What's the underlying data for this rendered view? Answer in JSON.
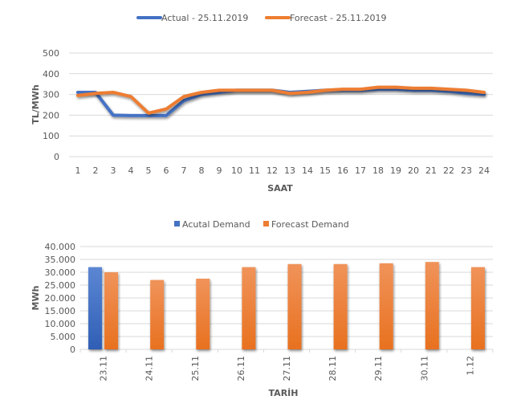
{
  "colors": {
    "actual": "#4472c4",
    "forecast": "#ed7d31",
    "grid": "#d9d9d9",
    "text": "#595959"
  },
  "chart_data": [
    {
      "type": "line",
      "title": "",
      "legend": [
        "Actual - 25.11.2019",
        "Forecast - 25.11.2019"
      ],
      "legend_position": "top",
      "xlabel": "SAAT",
      "ylabel": "TL/MWh",
      "ylim": [
        0,
        500
      ],
      "yticks": [
        0,
        100,
        200,
        300,
        400,
        500
      ],
      "grid": true,
      "x": [
        1,
        2,
        3,
        4,
        5,
        6,
        7,
        8,
        9,
        10,
        11,
        12,
        13,
        14,
        15,
        16,
        17,
        18,
        19,
        20,
        21,
        22,
        23,
        24
      ],
      "series": [
        {
          "name": "Actual - 25.11.2019",
          "values": [
            310,
            310,
            200,
            198,
            198,
            198,
            270,
            300,
            310,
            320,
            320,
            320,
            310,
            315,
            320,
            320,
            320,
            325,
            325,
            320,
            320,
            315,
            305,
            300
          ]
        },
        {
          "name": "Forecast - 25.11.2019",
          "values": [
            295,
            305,
            310,
            290,
            210,
            230,
            290,
            310,
            320,
            320,
            320,
            320,
            305,
            310,
            320,
            325,
            325,
            335,
            335,
            330,
            330,
            325,
            320,
            310
          ]
        }
      ]
    },
    {
      "type": "bar",
      "title": "",
      "legend": [
        "Acutal Demand",
        "Forecast Demand"
      ],
      "legend_position": "top",
      "xlabel": "TARİH",
      "ylabel": "MWh",
      "ylim": [
        0,
        40000
      ],
      "yticks": [
        "0",
        "5.000",
        "10.000",
        "15.000",
        "20.000",
        "25.000",
        "30.000",
        "35.000",
        "40.000"
      ],
      "grid": true,
      "categories": [
        "23.11",
        "24.11",
        "25.11",
        "26.11",
        "27.11",
        "28.11",
        "29.11",
        "30.11",
        "1.12"
      ],
      "series": [
        {
          "name": "Acutal Demand",
          "values": [
            32000,
            null,
            null,
            null,
            null,
            null,
            null,
            null,
            null
          ]
        },
        {
          "name": "Forecast Demand",
          "values": [
            30000,
            27000,
            27500,
            32000,
            33200,
            33200,
            33500,
            34000,
            32000
          ]
        }
      ]
    }
  ]
}
